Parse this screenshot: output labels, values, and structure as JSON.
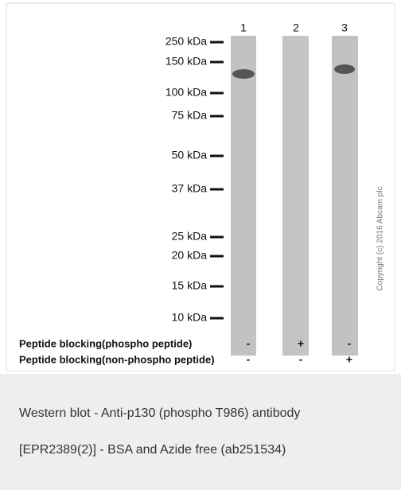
{
  "lanes": [
    "1",
    "2",
    "3"
  ],
  "markers": [
    "250 kDa",
    "150 kDa",
    "100 kDa",
    "75 kDa",
    "50 kDa",
    "37 kDa",
    "25 kDa",
    "20 kDa",
    "15 kDa",
    "10 kDa"
  ],
  "rows": [
    {
      "label": "Peptide blocking(phospho peptide)",
      "signs": [
        "-",
        "+",
        "-"
      ]
    },
    {
      "label": "Peptide blocking(non-phospho peptide)",
      "signs": [
        "-",
        "-",
        "+"
      ]
    }
  ],
  "copyright": "Copyright (c) 2016 Abcam plc",
  "caption": [
    "Western blot - Anti-p130 (phospho T986) antibody",
    "[EPR2389(2)] - BSA and Azide free (ab251534)"
  ]
}
